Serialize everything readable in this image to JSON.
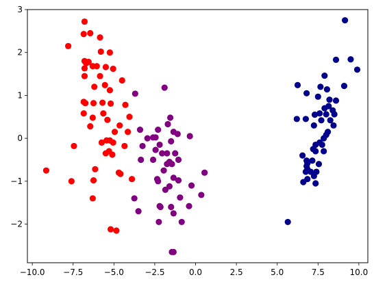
{
  "chart_data": {
    "type": "scatter",
    "title": "",
    "xlabel": "",
    "ylabel": "",
    "xlim": [
      -10.3,
      10.55
    ],
    "ylim": [
      -2.9,
      3.0
    ],
    "grid": false,
    "legend": "none",
    "xticks": [
      -10.0,
      -7.5,
      -5.0,
      -2.5,
      0.0,
      2.5,
      5.0,
      7.5,
      10.0
    ],
    "xtick_labels": [
      "−10.0",
      "−7.5",
      "−5.0",
      "−2.5",
      "0.0",
      "2.5",
      "5.0",
      "7.5",
      "10.0"
    ],
    "yticks": [
      -2,
      -1,
      0,
      1,
      2,
      3
    ],
    "ytick_labels": [
      "−2",
      "−1",
      "0",
      "1",
      "2",
      "3"
    ],
    "series": [
      {
        "color": "#ff0000",
        "points": [
          [
            -6.8,
            2.72
          ],
          [
            -6.85,
            2.43
          ],
          [
            -6.45,
            2.45
          ],
          [
            -5.85,
            2.35
          ],
          [
            -7.8,
            2.15
          ],
          [
            -5.8,
            2.02
          ],
          [
            -5.25,
            2.0
          ],
          [
            -6.55,
            1.78
          ],
          [
            -6.8,
            1.8
          ],
          [
            -6.7,
            1.75
          ],
          [
            -6.3,
            1.68
          ],
          [
            -6.8,
            1.63
          ],
          [
            -6.05,
            1.68
          ],
          [
            -5.5,
            1.66
          ],
          [
            -5.05,
            1.62
          ],
          [
            -6.8,
            1.45
          ],
          [
            -5.85,
            1.45
          ],
          [
            -4.5,
            1.35
          ],
          [
            -5.55,
            1.24
          ],
          [
            -6.2,
            1.2
          ],
          [
            -5.25,
            1.12
          ],
          [
            -6.85,
            0.85
          ],
          [
            -6.75,
            0.82
          ],
          [
            -5.7,
            0.83
          ],
          [
            -6.25,
            0.82
          ],
          [
            -5.2,
            0.81
          ],
          [
            -4.3,
            0.78
          ],
          [
            -6.85,
            0.58
          ],
          [
            -5.65,
            0.58
          ],
          [
            -4.05,
            0.5
          ],
          [
            -6.3,
            0.48
          ],
          [
            -5.4,
            0.43
          ],
          [
            -6.45,
            0.28
          ],
          [
            -4.65,
            0.3
          ],
          [
            -4.15,
            0.15
          ],
          [
            -4.95,
            0.15
          ],
          [
            -5.75,
            -0.1
          ],
          [
            -5.45,
            -0.05
          ],
          [
            -5.25,
            -0.05
          ],
          [
            -5.05,
            -0.1
          ],
          [
            -4.35,
            -0.18
          ],
          [
            -5.5,
            -0.35
          ],
          [
            -5.3,
            -0.3
          ],
          [
            -5.1,
            -0.38
          ],
          [
            -4.7,
            -0.8
          ],
          [
            -7.45,
            -0.18
          ],
          [
            -6.15,
            -0.72
          ],
          [
            -9.15,
            -0.75
          ],
          [
            -4.6,
            -0.83
          ],
          [
            -3.9,
            -0.95
          ],
          [
            -7.6,
            -1.0
          ],
          [
            -6.25,
            -0.98
          ],
          [
            -6.3,
            -1.4
          ],
          [
            -5.2,
            -2.12
          ],
          [
            -4.85,
            -2.15
          ]
        ]
      },
      {
        "color": "#800080",
        "points": [
          [
            -1.9,
            1.18
          ],
          [
            -3.7,
            1.04
          ],
          [
            -1.55,
            0.48
          ],
          [
            -1.7,
            0.33
          ],
          [
            -3.4,
            0.2
          ],
          [
            -2.95,
            0.0
          ],
          [
            -2.3,
            0.2
          ],
          [
            -2.6,
            0.02
          ],
          [
            -2.45,
            0.02
          ],
          [
            -1.35,
            0.15
          ],
          [
            -1.1,
            0.1
          ],
          [
            -0.35,
            0.05
          ],
          [
            -2.2,
            -0.15
          ],
          [
            -1.5,
            -0.07
          ],
          [
            -3.25,
            -0.18
          ],
          [
            -2.45,
            -0.27
          ],
          [
            -2.05,
            -0.35
          ],
          [
            -1.75,
            -0.35
          ],
          [
            -1.25,
            -0.35
          ],
          [
            -2.6,
            -0.5
          ],
          [
            -1.6,
            -0.55
          ],
          [
            -1.05,
            -0.5
          ],
          [
            -1.75,
            -0.6
          ],
          [
            -1.45,
            -0.6
          ],
          [
            -1.95,
            -0.75
          ],
          [
            -3.35,
            -0.5
          ],
          [
            -2.35,
            -0.95
          ],
          [
            -2.3,
            -1.0
          ],
          [
            -1.35,
            -0.92
          ],
          [
            -1.05,
            -0.98
          ],
          [
            0.55,
            -0.8
          ],
          [
            -1.85,
            -1.2
          ],
          [
            -3.75,
            -1.4
          ],
          [
            -1.6,
            -1.12
          ],
          [
            -0.25,
            -1.1
          ],
          [
            -0.95,
            -1.38
          ],
          [
            0.35,
            -1.32
          ],
          [
            -2.15,
            -1.6
          ],
          [
            -1.5,
            -1.6
          ],
          [
            -3.5,
            -1.7
          ],
          [
            -2.2,
            -1.58
          ],
          [
            -1.35,
            -1.75
          ],
          [
            -0.4,
            -1.58
          ],
          [
            -0.85,
            -1.95
          ],
          [
            -2.25,
            -1.95
          ],
          [
            -1.45,
            -2.65
          ],
          [
            -1.35,
            -2.65
          ]
        ]
      },
      {
        "color": "#00008b",
        "points": [
          [
            9.15,
            2.75
          ],
          [
            9.5,
            1.84
          ],
          [
            8.6,
            1.83
          ],
          [
            9.9,
            1.6
          ],
          [
            7.9,
            1.46
          ],
          [
            6.25,
            1.24
          ],
          [
            7.65,
            1.2
          ],
          [
            9.1,
            1.22
          ],
          [
            8.05,
            1.14
          ],
          [
            6.8,
            1.05
          ],
          [
            7.5,
            0.97
          ],
          [
            8.2,
            0.9
          ],
          [
            8.6,
            0.88
          ],
          [
            8.15,
            0.75
          ],
          [
            7.9,
            0.7
          ],
          [
            8.4,
            0.65
          ],
          [
            7.6,
            0.58
          ],
          [
            8.5,
            0.56
          ],
          [
            7.3,
            0.55
          ],
          [
            8.0,
            0.56
          ],
          [
            6.2,
            0.45
          ],
          [
            6.75,
            0.45
          ],
          [
            7.7,
            0.42
          ],
          [
            8.25,
            0.42
          ],
          [
            7.25,
            0.3
          ],
          [
            8.45,
            0.3
          ],
          [
            8.1,
            0.15
          ],
          [
            8.0,
            0.08
          ],
          [
            7.85,
            0.0
          ],
          [
            7.6,
            -0.1
          ],
          [
            7.35,
            -0.15
          ],
          [
            7.75,
            -0.15
          ],
          [
            7.2,
            -0.25
          ],
          [
            7.35,
            -0.3
          ],
          [
            7.85,
            -0.3
          ],
          [
            6.55,
            -0.4
          ],
          [
            6.8,
            -0.52
          ],
          [
            7.15,
            -0.52
          ],
          [
            6.85,
            -0.58
          ],
          [
            6.8,
            -0.65
          ],
          [
            7.55,
            -0.6
          ],
          [
            6.85,
            -0.72
          ],
          [
            6.75,
            -0.78
          ],
          [
            7.05,
            -0.78
          ],
          [
            7.4,
            -0.78
          ],
          [
            7.25,
            -0.88
          ],
          [
            6.85,
            -0.95
          ],
          [
            6.6,
            -1.02
          ],
          [
            7.35,
            -1.05
          ],
          [
            5.65,
            -1.95
          ]
        ]
      }
    ]
  }
}
